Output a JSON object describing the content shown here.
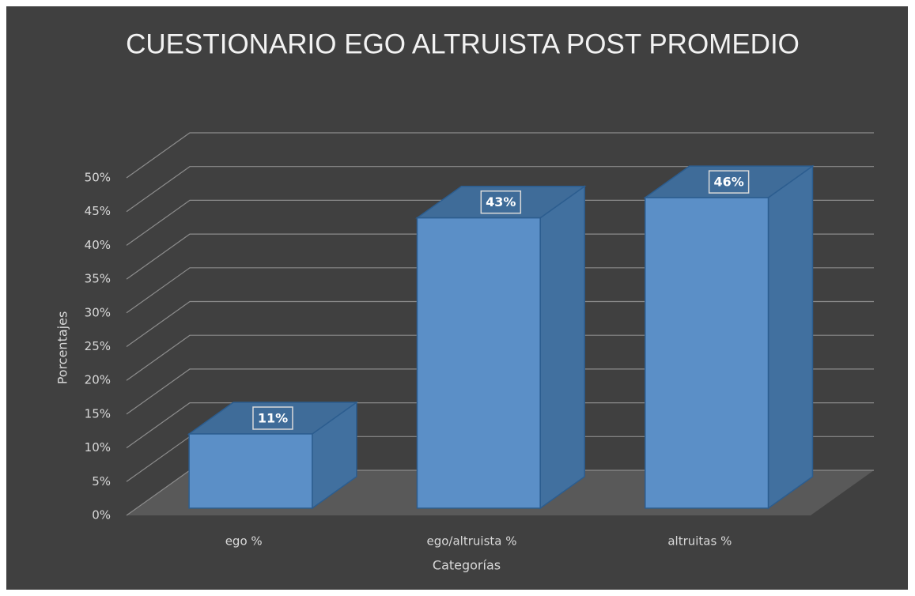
{
  "chart_data": {
    "type": "bar3d",
    "title": "CUESTIONARIO EGO ALTRUISTA POST PROMEDIO",
    "x_label": "Categorías",
    "y_label": "Porcentajes",
    "categories": [
      "ego %",
      "ego/altruista %",
      "altruitas %"
    ],
    "values": [
      11,
      43,
      46
    ],
    "value_labels": [
      "11%",
      "43%",
      "46%"
    ],
    "color": "#5b8fc7",
    "ylim": [
      0,
      50
    ],
    "yticks": [
      {
        "value": 0,
        "label": "0%"
      },
      {
        "value": 5,
        "label": "5%"
      },
      {
        "value": 10,
        "label": "10%"
      },
      {
        "value": 15,
        "label": "15%"
      },
      {
        "value": 20,
        "label": "20%"
      },
      {
        "value": 25,
        "label": "25%"
      },
      {
        "value": 30,
        "label": "30%"
      },
      {
        "value": 35,
        "label": "35%"
      },
      {
        "value": 40,
        "label": "40%"
      },
      {
        "value": 45,
        "label": "45%"
      },
      {
        "value": 50,
        "label": "50%"
      }
    ],
    "grid": true
  }
}
